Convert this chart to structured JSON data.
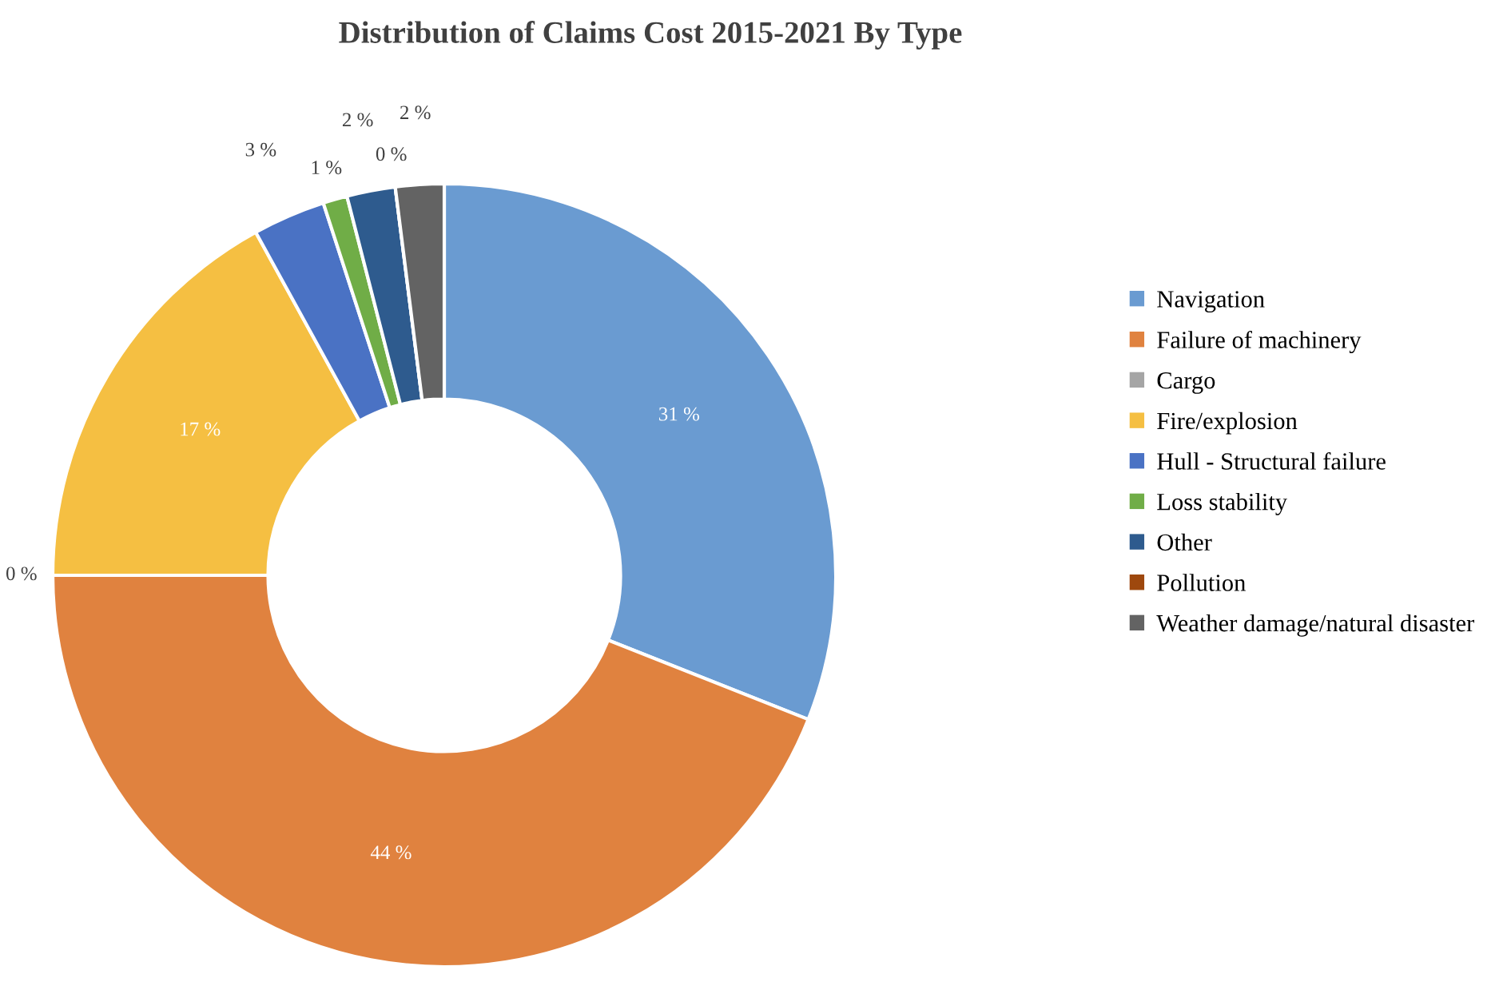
{
  "chart_data": {
    "type": "donut",
    "title": "Distribution of Claims Cost 2015-2021 By Type",
    "categories": [
      "Navigation",
      "Failure of machinery",
      "Cargo",
      "Fire/explosion",
      "Hull - Structural failure",
      "Loss stability",
      "Other",
      "Pollution",
      "Weather damage/natural disaster"
    ],
    "values": [
      31,
      44,
      0,
      17,
      3,
      1,
      2,
      0,
      2
    ],
    "colors": [
      "#6a9bd1",
      "#e0823f",
      "#a5a5a5",
      "#f5bf42",
      "#4a72c4",
      "#70ad47",
      "#2e5b8e",
      "#9e480e",
      "#636363"
    ],
    "value_labels": [
      "31 %",
      "44 %",
      "0 %",
      "17 %",
      "3 %",
      "1 %",
      "2 %",
      "0 %",
      "2 %"
    ],
    "legend": "right"
  }
}
